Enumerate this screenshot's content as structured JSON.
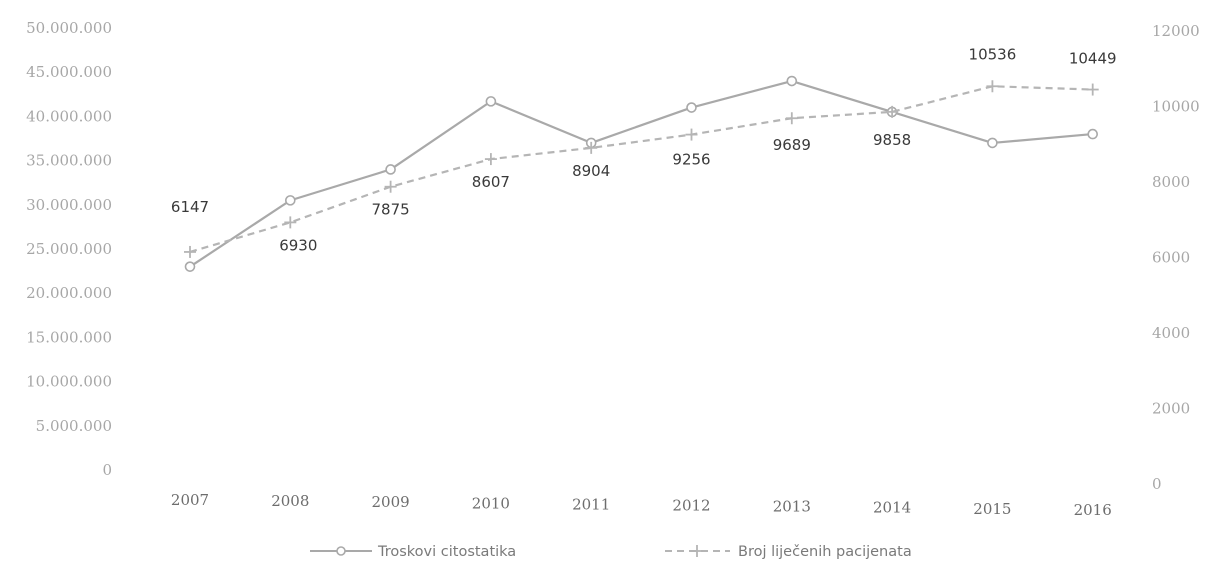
{
  "chart_data": {
    "type": "line",
    "title": "",
    "categories": [
      "2007",
      "2008",
      "2009",
      "2010",
      "2011",
      "2012",
      "2013",
      "2014",
      "2015",
      "2016"
    ],
    "y_left": {
      "range": [
        0,
        50000000
      ],
      "tick_labels": [
        "0",
        "5.000.000",
        "10.000.000",
        "15.000.000",
        "20.000.000",
        "25.000.000",
        "30.000.000",
        "35.000.000",
        "40.000.000",
        "45.000.000",
        "50.000.000"
      ]
    },
    "y_right": {
      "range": [
        0,
        12000
      ],
      "tick_labels": [
        "0",
        "2000",
        "4000",
        "6000",
        "8000",
        "10000",
        "12000"
      ]
    },
    "series": [
      {
        "name": "Troskovi citostatika",
        "axis": "left",
        "color": "#a9a9a9",
        "style": "solid",
        "marker": "circle",
        "values": [
          23000000,
          30500000,
          34000000,
          41700000,
          37000000,
          41000000,
          44000000,
          40500000,
          37000000,
          38000000
        ]
      },
      {
        "name": "Broj liječenih pacijenata",
        "axis": "right",
        "color": "#b5b5b5",
        "style": "dashed",
        "marker": "cross",
        "values": [
          6147,
          6930,
          7875,
          8607,
          8904,
          9256,
          9689,
          9858,
          10536,
          10449
        ],
        "data_labels": [
          "6147",
          "6930",
          "7875",
          "8607",
          "8904",
          "9256",
          "9689",
          "9858",
          "10536",
          "10449"
        ]
      }
    ],
    "legend": {
      "placement": "bottom",
      "items": [
        "Troskovi citostatika",
        "Broj liječenih pacijenata"
      ]
    },
    "grid": false
  }
}
